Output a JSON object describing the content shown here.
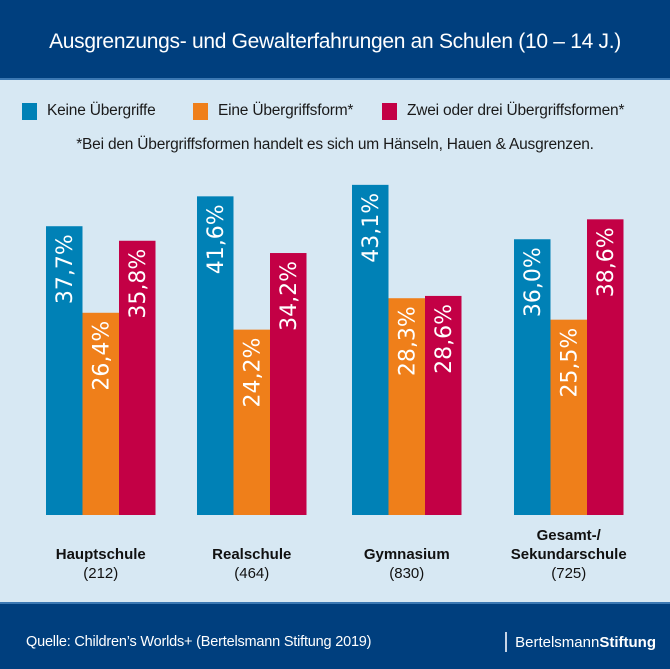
{
  "header": {
    "title": "Ausgrenzungs- und Gewalterfahrungen an Schulen (10 – 14 J.)"
  },
  "legend": [
    {
      "label": "Keine Übergriffe",
      "color": "#0081b6"
    },
    {
      "label": "Eine Übergriffsform*",
      "color": "#ef7f1a"
    },
    {
      "label": "Zwei oder drei Übergriffsformen*",
      "color": "#c30045"
    }
  ],
  "note": "*Bei den Übergriffsformen handelt es sich um Hänseln, Hauen & Ausgrenzen.",
  "chart_data": {
    "type": "bar",
    "title": "Ausgrenzungs- und Gewalterfahrungen an Schulen (10 – 14 J.)",
    "xlabel": "",
    "ylabel": "",
    "unit": "%",
    "ylim": [
      0,
      45
    ],
    "grid": false,
    "legend_position": "top",
    "categories": [
      {
        "name": "Hauptschule",
        "n": "(212)"
      },
      {
        "name": "Realschule",
        "n": "(464)"
      },
      {
        "name": "Gymnasium",
        "n": "(830)"
      },
      {
        "name": "Gesamt-/\nSekundarschule",
        "n": "(725)"
      }
    ],
    "series": [
      {
        "name": "Keine Übergriffe",
        "color": "#0081b6",
        "values": [
          37.7,
          41.6,
          43.1,
          36.0
        ],
        "labels": [
          "37,7%",
          "41,6%",
          "43,1%",
          "36,0%"
        ]
      },
      {
        "name": "Eine Übergriffsform*",
        "color": "#ef7f1a",
        "values": [
          26.4,
          24.2,
          28.3,
          25.5
        ],
        "labels": [
          "26,4%",
          "24,2%",
          "28,3%",
          "25,5%"
        ]
      },
      {
        "name": "Zwei oder drei Übergriffsformen*",
        "color": "#c30045",
        "values": [
          35.8,
          34.2,
          28.6,
          38.6
        ],
        "labels": [
          "35,8%",
          "34,2%",
          "28,6%",
          "38,6%"
        ]
      }
    ]
  },
  "footer": {
    "source": "Quelle: Children’s Worlds+ (Bertelsmann Stiftung 2019)",
    "brand_light": "Bertelsmann",
    "brand_bold": "Stiftung"
  }
}
